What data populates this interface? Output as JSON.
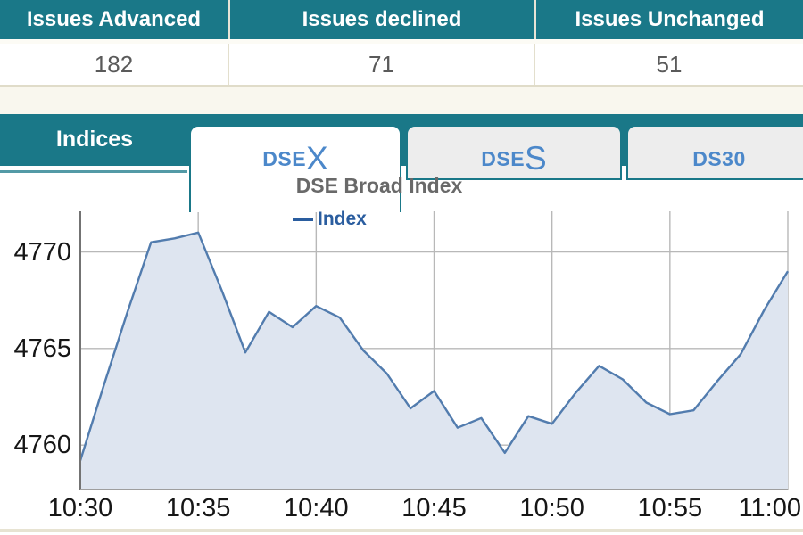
{
  "table": {
    "columns": [
      {
        "header": "Issues Advanced",
        "value": "182"
      },
      {
        "header": "Issues declined",
        "value": "71"
      },
      {
        "header": "Issues Unchanged",
        "value": "51"
      }
    ]
  },
  "tabs": {
    "panel_label": "Indices",
    "items": [
      {
        "prefix": "DSE",
        "suffix": "X",
        "active": true
      },
      {
        "prefix": "DSE",
        "suffix": "S",
        "active": false
      },
      {
        "prefix": "DS30",
        "suffix": "",
        "active": false
      }
    ]
  },
  "chart_data": {
    "type": "area",
    "title": "DSE Broad Index",
    "legend": [
      "Index"
    ],
    "legend_position": "top-center",
    "x": [
      "10:30",
      "10:31",
      "10:32",
      "10:33",
      "10:34",
      "10:35",
      "10:36",
      "10:37",
      "10:38",
      "10:39",
      "10:40",
      "10:41",
      "10:42",
      "10:43",
      "10:44",
      "10:45",
      "10:46",
      "10:47",
      "10:48",
      "10:49",
      "10:50",
      "10:51",
      "10:52",
      "10:53",
      "10:54",
      "10:55",
      "10:56",
      "10:57",
      "10:58",
      "10:59",
      "11:00"
    ],
    "values": [
      4759.2,
      4763.1,
      4766.9,
      4770.5,
      4770.7,
      4771.0,
      4768.0,
      4764.8,
      4766.9,
      4766.1,
      4767.2,
      4766.6,
      4764.9,
      4763.7,
      4761.9,
      4762.8,
      4760.9,
      4761.4,
      4759.6,
      4761.5,
      4761.1,
      4762.7,
      4764.1,
      4763.4,
      4762.2,
      4761.6,
      4761.8,
      4763.3,
      4764.7,
      4767.0,
      4769.0
    ],
    "x_tick_labels": [
      "10:30",
      "10:35",
      "10:40",
      "10:45",
      "10:50",
      "10:55",
      "11:00"
    ],
    "x_tick_minutes": [
      0,
      5,
      10,
      15,
      20,
      25,
      30
    ],
    "y_tick_labels": [
      "4760",
      "4765",
      "4770"
    ],
    "y_tick_values": [
      4760,
      4765,
      4770
    ],
    "ylim": [
      4757.7,
      4772.1
    ],
    "grid": true
  },
  "colors": {
    "teal": "#1a7888",
    "tab_text_blue": "#4c88ca",
    "legend_blue": "#2a5d9f",
    "line": "#527cae",
    "fill": "#dee5f0",
    "grid": "#b8b8b8",
    "axis_left": "#737373",
    "axis_bottom": "#9e9e9e"
  }
}
